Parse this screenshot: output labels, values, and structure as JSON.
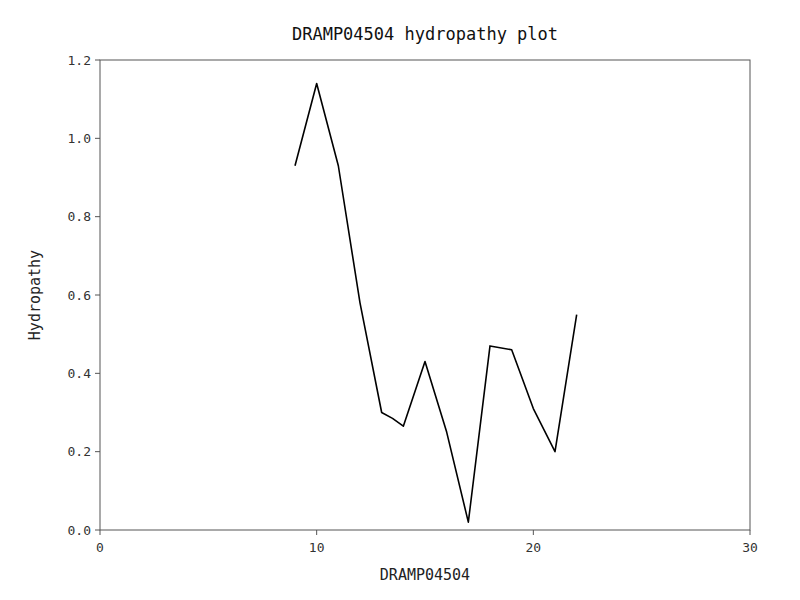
{
  "chart_data": {
    "type": "line",
    "title": "DRAMP04504 hydropathy plot",
    "x_label": "DRAMP04504",
    "y_label": "Hydropathy",
    "x": [
      9,
      10,
      11,
      12,
      13,
      13.5,
      14,
      15,
      16,
      17,
      18,
      19,
      20,
      21,
      22
    ],
    "values": [
      0.93,
      1.14,
      0.93,
      0.58,
      0.3,
      0.285,
      0.265,
      0.43,
      0.25,
      0.02,
      0.47,
      0.46,
      0.31,
      0.2,
      0.55
    ],
    "color": "#000000",
    "xlim": [
      0,
      30
    ],
    "ylim": [
      0,
      1.2
    ],
    "xticks": [
      0,
      10,
      20,
      30
    ],
    "yticks": [
      {
        "value": 0.0,
        "label": "0.0"
      },
      0.2,
      0.4,
      0.6,
      0.8,
      {
        "value": 1.0,
        "label": "1.0"
      },
      1.2
    ],
    "grid": false
  }
}
